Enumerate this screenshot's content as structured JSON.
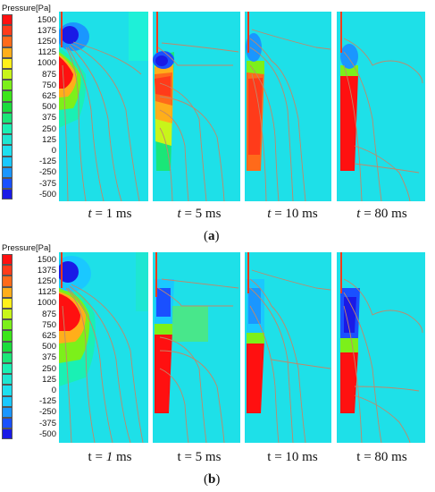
{
  "legend": {
    "title": "Pressure[Pa]",
    "entries": [
      {
        "label": "1500",
        "color": "#ff1010"
      },
      {
        "label": "1375",
        "color": "#ff3b1a"
      },
      {
        "label": "1250",
        "color": "#ff6a1a"
      },
      {
        "label": "1125",
        "color": "#ffae1a"
      },
      {
        "label": "1000",
        "color": "#fff01a"
      },
      {
        "label": "875",
        "color": "#c8f51a"
      },
      {
        "label": "750",
        "color": "#7cf01a"
      },
      {
        "label": "625",
        "color": "#3ce61a"
      },
      {
        "label": "500",
        "color": "#1adc3c"
      },
      {
        "label": "375",
        "color": "#1ae678"
      },
      {
        "label": "250",
        "color": "#1af0b4"
      },
      {
        "label": "125",
        "color": "#1ee6d2"
      },
      {
        "label": "0",
        "color": "#1ee0f0"
      },
      {
        "label": "-125",
        "color": "#1ac8ff"
      },
      {
        "label": "-250",
        "color": "#1a96ff"
      },
      {
        "label": "-375",
        "color": "#1a50ff"
      },
      {
        "label": "-500",
        "color": "#1a1ae6"
      }
    ]
  },
  "figure_a": {
    "label_open": "(",
    "label_letter": "a",
    "label_close": ")",
    "captions": [
      {
        "var": "t",
        "rest": " = 1 ms"
      },
      {
        "var": "t",
        "rest": " = 5 ms"
      },
      {
        "var": "t",
        "rest": " = 10 ms"
      },
      {
        "var": "t",
        "rest": " = 80 ms"
      }
    ]
  },
  "figure_b": {
    "label_open": "(",
    "label_letter": "b",
    "label_close": ")",
    "captions": [
      {
        "pre": "t = ",
        "num": "1",
        "rest": " ms"
      },
      {
        "pre": "t = 5 ms"
      },
      {
        "pre": "t = 10 ms"
      },
      {
        "pre": "t = 80 ms"
      }
    ]
  },
  "colors": {
    "background_field": "#1ee0e8",
    "high_pressure": "#ff1010",
    "low_pressure": "#1a1ae6",
    "streamline": "#c0886a"
  }
}
